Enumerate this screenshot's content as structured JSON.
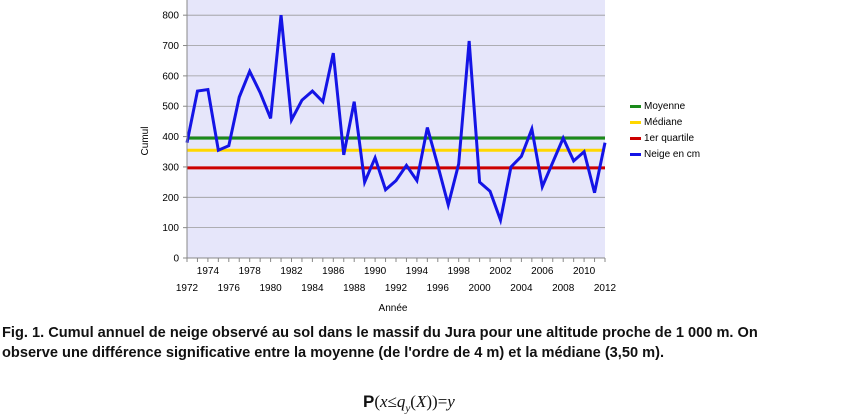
{
  "chart_data": {
    "type": "line",
    "title": "",
    "xlabel": "Année",
    "ylabel": "Cumul",
    "x": [
      1972,
      1973,
      1974,
      1975,
      1976,
      1977,
      1978,
      1979,
      1980,
      1981,
      1982,
      1983,
      1984,
      1985,
      1986,
      1987,
      1988,
      1989,
      1990,
      1991,
      1992,
      1993,
      1994,
      1995,
      1996,
      1997,
      1998,
      1999,
      2000,
      2001,
      2002,
      2003,
      2004,
      2005,
      2006,
      2007,
      2008,
      2009,
      2010,
      2011,
      2012
    ],
    "xlim": [
      1972,
      2012
    ],
    "ylim": [
      0,
      850
    ],
    "x_ticks_upper": [
      "1974",
      "1978",
      "1982",
      "1986",
      "1990",
      "1994",
      "1998",
      "2002",
      "2006",
      "2010"
    ],
    "x_ticks_lower": [
      "1972",
      "1976",
      "1980",
      "1984",
      "1988",
      "1992",
      "1996",
      "2000",
      "2004",
      "2008",
      "2012"
    ],
    "y_ticks": [
      "0",
      "100",
      "200",
      "300",
      "400",
      "500",
      "600",
      "700",
      "800"
    ],
    "grid": true,
    "legend_position": "right",
    "series": [
      {
        "name": "Moyenne",
        "color": "#1a8a1a",
        "values": [
          395,
          395,
          395,
          395,
          395,
          395,
          395,
          395,
          395,
          395,
          395,
          395,
          395,
          395,
          395,
          395,
          395,
          395,
          395,
          395,
          395,
          395,
          395,
          395,
          395,
          395,
          395,
          395,
          395,
          395,
          395,
          395,
          395,
          395,
          395,
          395,
          395,
          395,
          395,
          395,
          395
        ]
      },
      {
        "name": "Médiane",
        "color": "#ffd700",
        "values": [
          355,
          355,
          355,
          355,
          355,
          355,
          355,
          355,
          355,
          355,
          355,
          355,
          355,
          355,
          355,
          355,
          355,
          355,
          355,
          355,
          355,
          355,
          355,
          355,
          355,
          355,
          355,
          355,
          355,
          355,
          355,
          355,
          355,
          355,
          355,
          355,
          355,
          355,
          355,
          355,
          355
        ]
      },
      {
        "name": "1er quartile",
        "color": "#cc0000",
        "values": [
          297,
          297,
          297,
          297,
          297,
          297,
          297,
          297,
          297,
          297,
          297,
          297,
          297,
          297,
          297,
          297,
          297,
          297,
          297,
          297,
          297,
          297,
          297,
          297,
          297,
          297,
          297,
          297,
          297,
          297,
          297,
          297,
          297,
          297,
          297,
          297,
          297,
          297,
          297,
          297,
          297
        ]
      },
      {
        "name": "Neige en cm",
        "color": "#1414e6",
        "values": [
          380,
          550,
          555,
          355,
          370,
          530,
          615,
          545,
          460,
          800,
          455,
          520,
          550,
          515,
          675,
          340,
          515,
          250,
          330,
          225,
          255,
          305,
          255,
          430,
          305,
          175,
          310,
          715,
          250,
          220,
          125,
          300,
          335,
          425,
          235,
          315,
          395,
          320,
          350,
          215,
          380
        ]
      }
    ]
  },
  "caption": {
    "text": "Fig. 1. Cumul annuel de neige observé au sol dans le massif du Jura pour une altitude proche de 1 000 m. On\nobserve une différence significative entre la moyenne (de l'ordre de 4 m) et la médiane (3,50 m)."
  },
  "formula": {
    "p": "P",
    "open": "(",
    "x": "x",
    "le": "≤",
    "q": "q",
    "sub": "y",
    "open2": "(",
    "X": "X",
    "close2": ")",
    "close": ")",
    "eq": "=",
    "y": "y"
  }
}
